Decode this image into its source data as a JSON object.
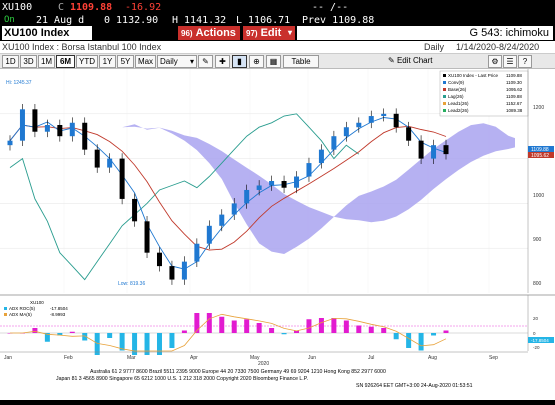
{
  "quote_bar": {
    "ticker": "XU100",
    "price_prefix": "C",
    "price": "1109.88",
    "change": "-16.92",
    "status": "On",
    "date": "21 Aug d",
    "open": "0 1132.90",
    "high": "H 1141.32",
    "low": "L 1106.71",
    "prev": "Prev 1109.88",
    "extra": "-- /--"
  },
  "command_bar": {
    "ticker_label": "XU100 Index",
    "actions_num": "96)",
    "actions_label": "Actions",
    "edit_num": "97)",
    "edit_label": "Edit",
    "function_label": "G 543: ichimoku"
  },
  "chart_header": {
    "title": "XU100 Index : Borsa Istanbul 100 Index",
    "frequency": "Daily",
    "date_range": "1/14/2020-8/24/2020"
  },
  "toolbar": {
    "buttons": [
      "1D",
      "3D",
      "1M",
      "6M",
      "YTD",
      "1Y",
      "5Y",
      "Max"
    ],
    "active": "6M",
    "frequency_select": "Daily",
    "table_label": "Table",
    "edit_chart_label": "Edit Chart"
  },
  "colors": {
    "cloud": "#a9a3f0",
    "candle": "#000000",
    "conversion": "#1f78d1",
    "base": "#c0392b",
    "lagging": "#2a9d8f",
    "price_label": "#1f78d1",
    "adx_roc": "#e21bd0",
    "adx_ma": "#e8a23a",
    "histogram_cyan": "#24b5e6"
  },
  "chart_data": {
    "type": "line",
    "x": [
      "Jan",
      "Feb",
      "Mar",
      "Apr",
      "May",
      "Jun",
      "Jul",
      "Aug",
      "Sep"
    ],
    "year_label": "2020",
    "ylim": [
      800,
      1300
    ],
    "ytick_labels": [
      "1200",
      "1100",
      "1000",
      "900",
      "800"
    ],
    "annotations": {
      "high": "Hi: 1245.37",
      "low": "Low: 819.36"
    },
    "price_close_approx": [
      1140,
      1210,
      1160,
      1175,
      1150,
      1180,
      1120,
      1080,
      1100,
      1010,
      960,
      890,
      860,
      830,
      870,
      910,
      950,
      975,
      1000,
      1030,
      1040,
      1050,
      1035,
      1060,
      1090,
      1120,
      1150,
      1170,
      1180,
      1195,
      1200,
      1170,
      1140,
      1100,
      1130,
      1110
    ],
    "legend": [
      {
        "name": "XU100 Index - Last Price",
        "value": "1109.88"
      },
      {
        "name": "Conv(9)",
        "value": "1109.30"
      },
      {
        "name": "Base(26)",
        "value": "1095.62"
      },
      {
        "name": "Lag(26)",
        "value": "1109.88"
      },
      {
        "name": "Lead1(26)",
        "value": "1152.67"
      },
      {
        "name": "Lead2(26)",
        "value": "1089.38"
      }
    ],
    "price_tags": [
      "1109.88",
      "1095.62"
    ],
    "lower_panel": {
      "title": "XU100",
      "legend": [
        {
          "name": "ADX ROC(5)",
          "value": "-17.8504"
        },
        {
          "name": "ADX MA(5)",
          "value": "-8.9993"
        }
      ],
      "tick_labels": [
        "20",
        "0",
        "-20"
      ],
      "price_tag": "-17.8504"
    }
  },
  "footer": {
    "line1": "Australia 61 2 9777 8600 Brazil 5511 2395 9000 Europe 44 20 7330 7500 Germany 49 69 9204 1210 Hong Kong 852 2977 6000",
    "line2": "Japan 81 3 4565 8900        Singapore 65 6212 1000        U.S. 1 212 318 2000        Copyright 2020 Bloomberg Finance L.P.",
    "line3": "SN 926264 EET  GMT+3:00 24-Aug-2020 01:53:51"
  }
}
